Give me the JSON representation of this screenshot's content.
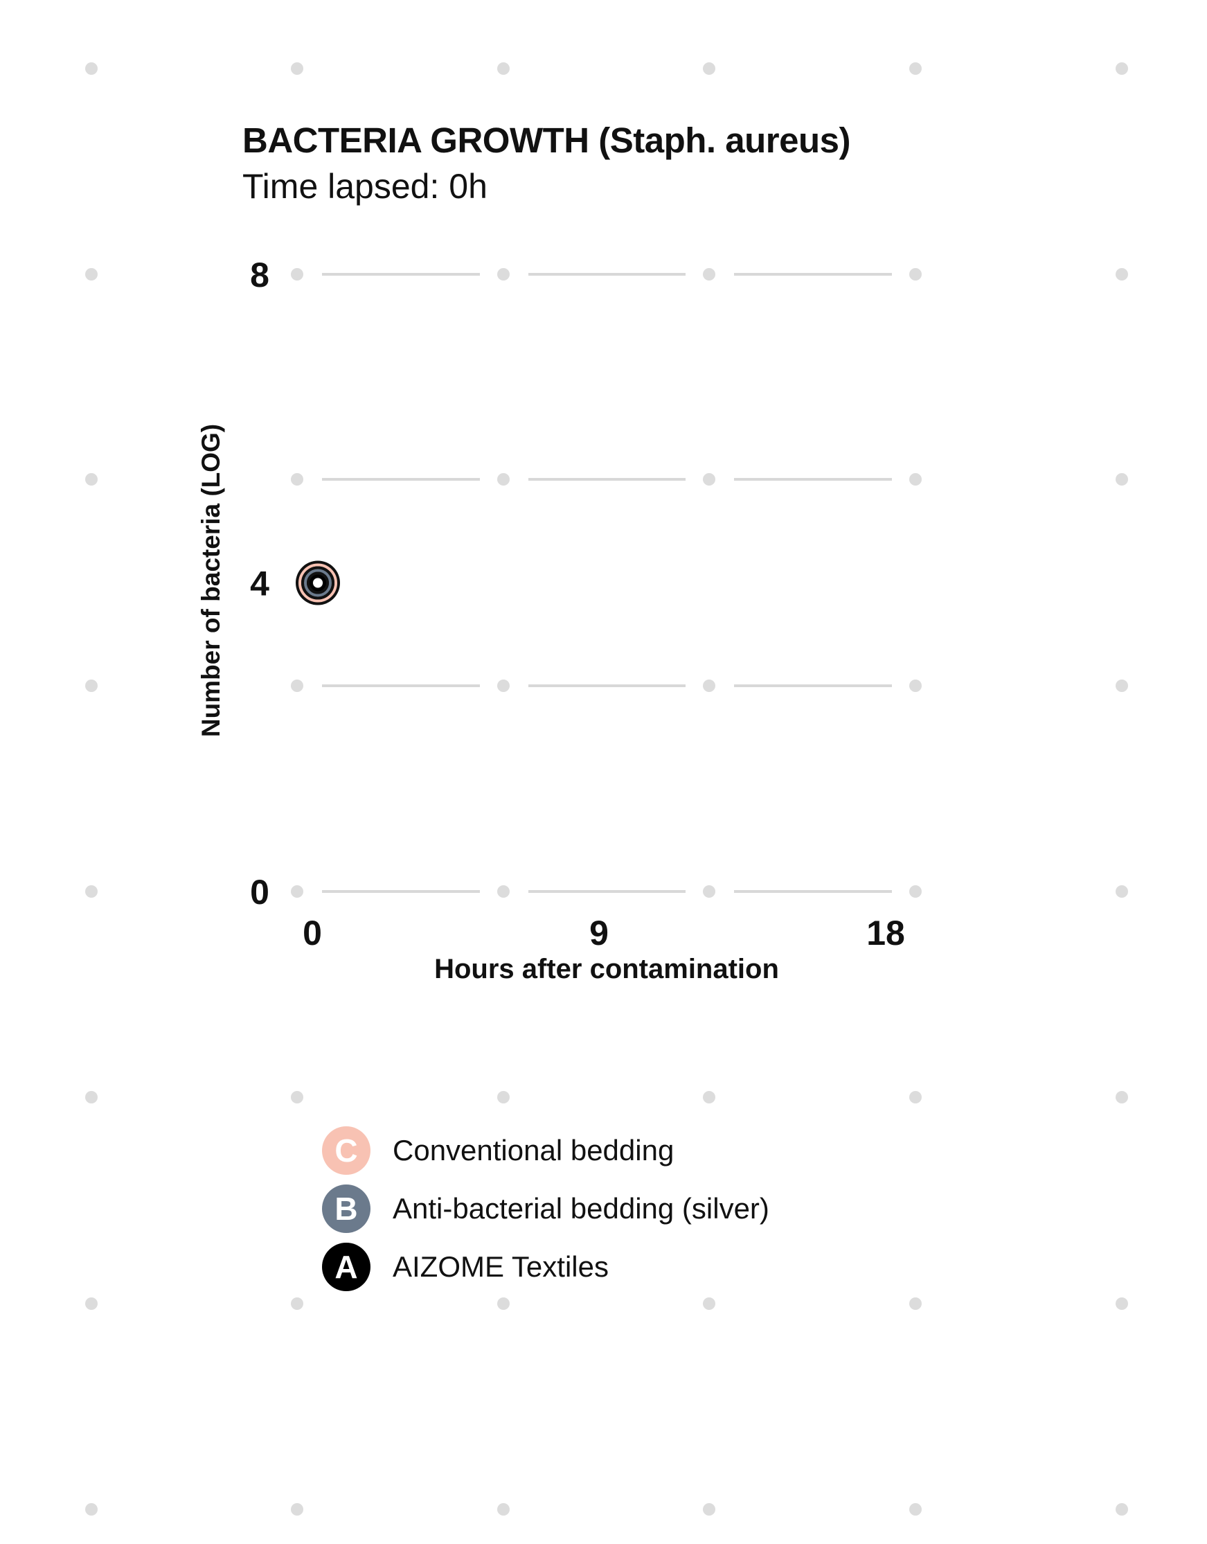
{
  "chart_data": {
    "type": "scatter",
    "title": "BACTERIA GROWTH (Staph. aureus)",
    "subtitle": "Time lapsed: 0h",
    "xlabel": "Hours after contamination",
    "ylabel": "Number of bacteria (LOG)",
    "xlim": [
      0,
      18
    ],
    "ylim": [
      0,
      8
    ],
    "x_ticks": [
      "0",
      "9",
      "18"
    ],
    "y_ticks": [
      "0",
      "4",
      "8"
    ],
    "grid": true,
    "legend_position": "bottom",
    "series": [
      {
        "letter": "C",
        "name": "Conventional bedding",
        "color": "#f8c2b3",
        "points": [
          {
            "x": 0,
            "y": 4
          }
        ]
      },
      {
        "letter": "B",
        "name": "Anti-bacterial bedding (silver)",
        "color": "#6b7a8c",
        "points": [
          {
            "x": 0,
            "y": 4
          }
        ]
      },
      {
        "letter": "A",
        "name": "AIZOME Textiles",
        "color": "#000000",
        "points": [
          {
            "x": 0,
            "y": 4
          }
        ]
      }
    ]
  }
}
